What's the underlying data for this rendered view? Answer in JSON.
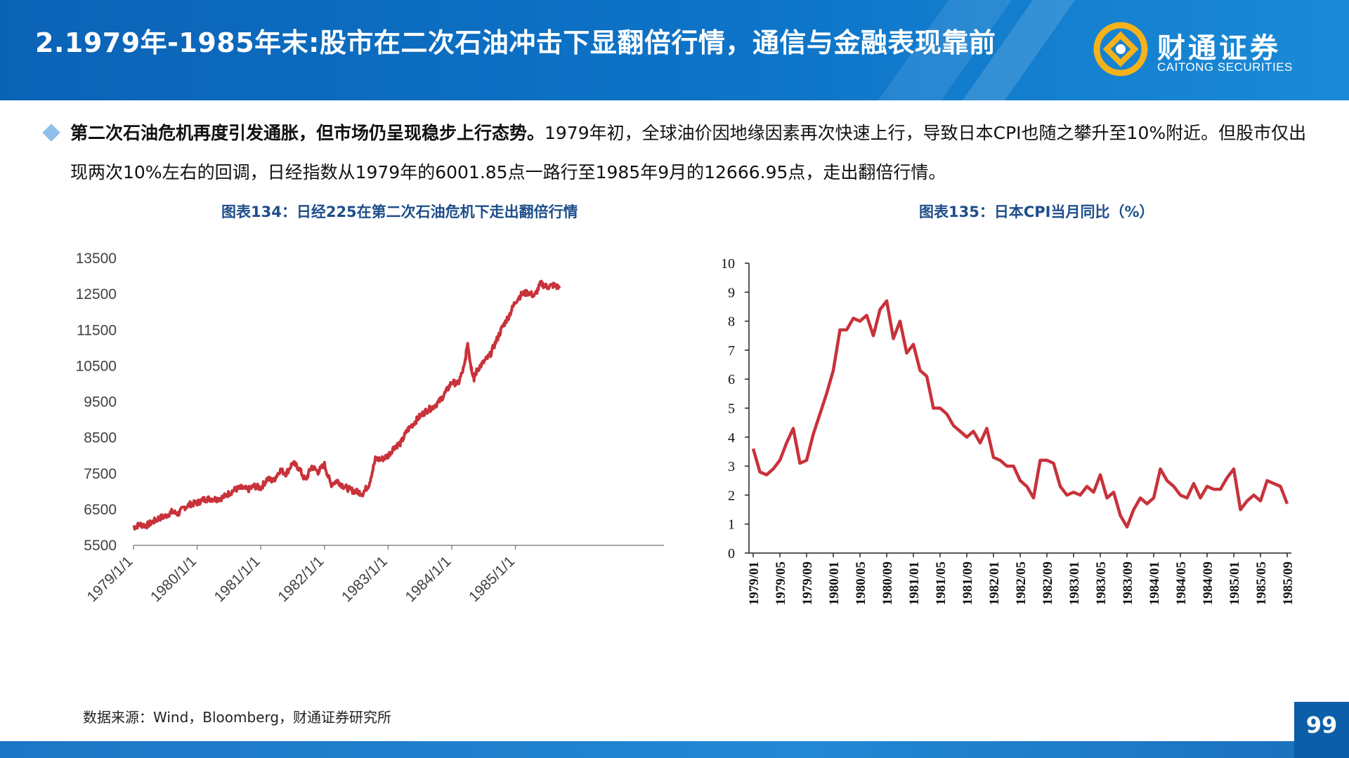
{
  "header": {
    "title": "2.1979年-1985年末:股市在二次石油冲击下显翻倍行情，通信与金融表现靠前",
    "logo_cn": "财通证券",
    "logo_en": "CAITONG SECURITIES"
  },
  "bullet": {
    "bold": "第二次石油危机再度引发通胀，但市场仍呈现稳步上行态势。",
    "text": "1979年初，全球油价因地缘因素再次快速上行，导致日本CPI也随之攀升至10%附近。但股市仅出现两次10%左右的回调，日经指数从1979年的6001.85点一路行至1985年9月的12666.95点，走出翻倍行情。"
  },
  "chart1": {
    "title": "图表134：日经225在第二次石油危机下走出翻倍行情"
  },
  "chart2": {
    "title": "图表135：日本CPI当月同比（%）"
  },
  "source": "数据来源：Wind，Bloomberg，财通证券研究所",
  "page_number": "99",
  "colors": {
    "line": "#c8323a",
    "header": "#0d74c8",
    "title_blue": "#1e4e8a"
  },
  "chart_data": [
    {
      "type": "line",
      "title": "图表134：日经225在第二次石油危机下走出翻倍行情",
      "x_ticks": [
        "1979/1/1",
        "1980/1/1",
        "1981/1/1",
        "1982/1/1",
        "1983/1/1",
        "1984/1/1",
        "1985/1/1"
      ],
      "y_ticks": [
        "5500",
        "6500",
        "7500",
        "8500",
        "9500",
        "10500",
        "11500",
        "12500",
        "13500"
      ],
      "ylim": [
        5500,
        13500
      ],
      "xlim": [
        1979.0,
        1985.75
      ],
      "series": [
        {
          "x": [
            1979.0,
            1979.1,
            1979.2,
            1979.3,
            1979.4,
            1979.5,
            1979.6,
            1979.7,
            1979.8,
            1979.9,
            1980.0,
            1980.1,
            1980.2,
            1980.3,
            1980.4,
            1980.5,
            1980.6,
            1980.7,
            1980.8,
            1980.9,
            1981.0,
            1981.1,
            1981.2,
            1981.3,
            1981.4,
            1981.5,
            1981.6,
            1981.7,
            1981.8,
            1981.9,
            1982.0,
            1982.1,
            1982.2,
            1982.3,
            1982.4,
            1982.5,
            1982.6,
            1982.7,
            1982.8,
            1982.9,
            1983.0,
            1983.1,
            1983.2,
            1983.3,
            1983.4,
            1983.5,
            1983.6,
            1983.7,
            1983.8,
            1983.9,
            1984.0,
            1984.1,
            1984.2,
            1984.25,
            1984.3,
            1984.35,
            1984.4,
            1984.5,
            1984.6,
            1984.7,
            1984.8,
            1984.9,
            1985.0,
            1985.1,
            1985.2,
            1985.3,
            1985.4,
            1985.5,
            1985.6,
            1985.7
          ],
          "values": [
            6002,
            6080,
            6050,
            6150,
            6260,
            6310,
            6430,
            6380,
            6560,
            6650,
            6680,
            6780,
            6800,
            6790,
            6830,
            6950,
            7060,
            7100,
            7050,
            7150,
            7100,
            7350,
            7300,
            7600,
            7500,
            7800,
            7650,
            7300,
            7700,
            7550,
            7750,
            7200,
            7300,
            7150,
            7050,
            7000,
            6950,
            7200,
            7900,
            7900,
            8000,
            8250,
            8350,
            8700,
            8900,
            9100,
            9250,
            9350,
            9500,
            9750,
            10050,
            10000,
            10500,
            11150,
            10500,
            10150,
            10400,
            10600,
            10800,
            11200,
            11600,
            11900,
            12300,
            12500,
            12550,
            12450,
            12800,
            12700,
            12750,
            12667
          ]
        }
      ]
    },
    {
      "type": "line",
      "title": "图表135：日本CPI当月同比（%）",
      "x_ticks": [
        "1979/01",
        "1979/05",
        "1979/09",
        "1980/01",
        "1980/05",
        "1980/09",
        "1981/01",
        "1981/05",
        "1981/09",
        "1982/01",
        "1982/05",
        "1982/09",
        "1983/01",
        "1983/05",
        "1983/09",
        "1984/01",
        "1984/05",
        "1984/09",
        "1985/01",
        "1985/05",
        "1985/09"
      ],
      "y_ticks": [
        "0",
        "1",
        "2",
        "3",
        "4",
        "5",
        "6",
        "7",
        "8",
        "9",
        "10"
      ],
      "ylim": [
        0,
        10
      ],
      "series": [
        {
          "values": [
            3.6,
            2.8,
            2.7,
            2.9,
            3.2,
            3.8,
            4.3,
            3.1,
            3.2,
            4.1,
            4.8,
            5.5,
            6.3,
            7.7,
            7.7,
            8.1,
            8.0,
            8.2,
            7.5,
            8.4,
            8.7,
            7.4,
            8.0,
            6.9,
            7.2,
            6.3,
            6.1,
            5.0,
            5.0,
            4.8,
            4.4,
            4.2,
            4.0,
            4.2,
            3.8,
            4.3,
            3.3,
            3.2,
            3.0,
            3.0,
            2.5,
            2.3,
            1.9,
            3.2,
            3.2,
            3.1,
            2.3,
            2.0,
            2.1,
            2.0,
            2.3,
            2.1,
            2.7,
            1.9,
            2.1,
            1.3,
            0.9,
            1.5,
            1.9,
            1.7,
            1.9,
            2.9,
            2.5,
            2.3,
            2.0,
            1.9,
            2.4,
            1.9,
            2.3,
            2.2,
            2.2,
            2.6,
            2.9,
            1.5,
            1.8,
            2.0,
            1.8,
            2.5,
            2.4,
            2.3,
            1.7
          ]
        }
      ]
    }
  ]
}
